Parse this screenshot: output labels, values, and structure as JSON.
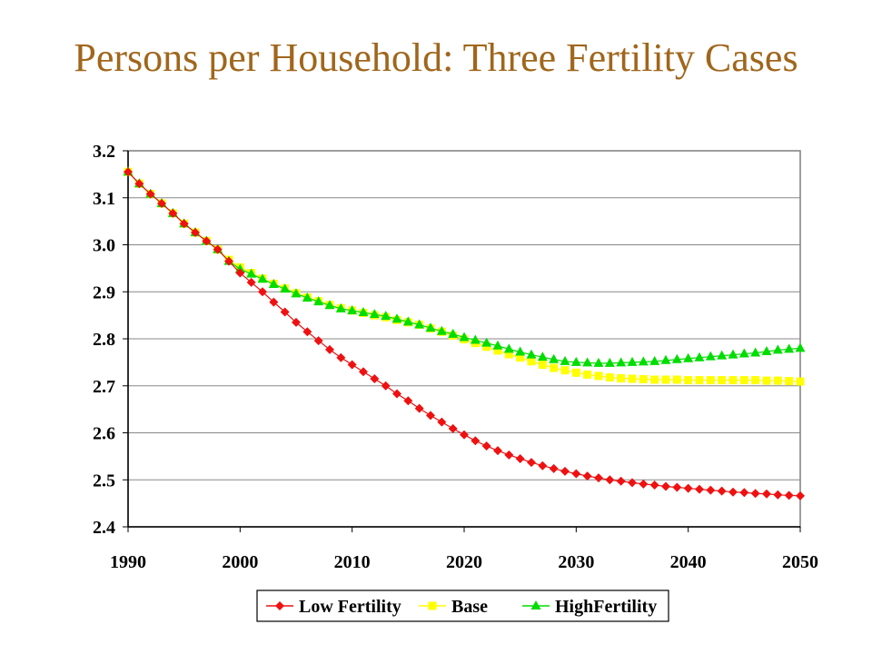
{
  "slide": {
    "title": "Persons per Household: Three Fertility Cases"
  },
  "chart_data": {
    "type": "line",
    "title": "",
    "xlabel": "",
    "ylabel": "",
    "xlim": [
      1990,
      2050
    ],
    "ylim": [
      2.4,
      3.2
    ],
    "x_ticks": [
      "1990",
      "2000",
      "2010",
      "2020",
      "2030",
      "2040",
      "2050"
    ],
    "y_ticks": [
      "2.4",
      "2.5",
      "2.6",
      "2.7",
      "2.8",
      "2.9",
      "3.0",
      "3.1",
      "3.2"
    ],
    "grid": "horizontal",
    "legend_position": "bottom",
    "x": [
      1990,
      1991,
      1992,
      1993,
      1994,
      1995,
      1996,
      1997,
      1998,
      1999,
      2000,
      2001,
      2002,
      2003,
      2004,
      2005,
      2006,
      2007,
      2008,
      2009,
      2010,
      2011,
      2012,
      2013,
      2014,
      2015,
      2016,
      2017,
      2018,
      2019,
      2020,
      2021,
      2022,
      2023,
      2024,
      2025,
      2026,
      2027,
      2028,
      2029,
      2030,
      2031,
      2032,
      2033,
      2034,
      2035,
      2036,
      2037,
      2038,
      2039,
      2040,
      2041,
      2042,
      2043,
      2044,
      2045,
      2046,
      2047,
      2048,
      2049,
      2050
    ],
    "series": [
      {
        "name": "Low Fertility",
        "color": "#ee1111",
        "marker": "diamond",
        "values": [
          3.155,
          3.13,
          3.108,
          3.088,
          3.067,
          3.045,
          3.026,
          3.008,
          2.99,
          2.965,
          2.94,
          2.92,
          2.9,
          2.878,
          2.857,
          2.835,
          2.815,
          2.796,
          2.777,
          2.76,
          2.745,
          2.73,
          2.715,
          2.7,
          2.683,
          2.668,
          2.652,
          2.637,
          2.623,
          2.609,
          2.596,
          2.583,
          2.572,
          2.562,
          2.553,
          2.545,
          2.537,
          2.53,
          2.524,
          2.518,
          2.513,
          2.508,
          2.504,
          2.5,
          2.497,
          2.494,
          2.491,
          2.489,
          2.486,
          2.484,
          2.482,
          2.48,
          2.478,
          2.476,
          2.474,
          2.473,
          2.471,
          2.47,
          2.468,
          2.467,
          2.466
        ]
      },
      {
        "name": "Base",
        "color": "#ffff00",
        "marker": "square",
        "values": [
          3.155,
          3.13,
          3.108,
          3.088,
          3.067,
          3.045,
          3.026,
          3.008,
          2.99,
          2.968,
          2.952,
          2.94,
          2.928,
          2.917,
          2.907,
          2.897,
          2.888,
          2.88,
          2.872,
          2.865,
          2.86,
          2.855,
          2.85,
          2.846,
          2.84,
          2.835,
          2.83,
          2.822,
          2.815,
          2.807,
          2.799,
          2.791,
          2.783,
          2.775,
          2.767,
          2.76,
          2.752,
          2.745,
          2.738,
          2.733,
          2.728,
          2.724,
          2.721,
          2.718,
          2.716,
          2.715,
          2.714,
          2.713,
          2.713,
          2.713,
          2.712,
          2.712,
          2.712,
          2.712,
          2.712,
          2.712,
          2.712,
          2.711,
          2.711,
          2.71,
          2.709
        ]
      },
      {
        "name": "HighFertility",
        "color": "#00dd00",
        "marker": "triangle",
        "values": [
          3.155,
          3.13,
          3.108,
          3.088,
          3.067,
          3.045,
          3.026,
          3.008,
          2.99,
          2.965,
          2.948,
          2.938,
          2.927,
          2.916,
          2.906,
          2.896,
          2.887,
          2.879,
          2.871,
          2.864,
          2.86,
          2.856,
          2.852,
          2.848,
          2.842,
          2.836,
          2.83,
          2.823,
          2.816,
          2.81,
          2.803,
          2.797,
          2.791,
          2.785,
          2.778,
          2.772,
          2.766,
          2.761,
          2.756,
          2.752,
          2.75,
          2.749,
          2.748,
          2.748,
          2.749,
          2.75,
          2.751,
          2.752,
          2.754,
          2.756,
          2.758,
          2.76,
          2.762,
          2.764,
          2.766,
          2.768,
          2.77,
          2.773,
          2.776,
          2.778,
          2.78
        ]
      }
    ]
  }
}
